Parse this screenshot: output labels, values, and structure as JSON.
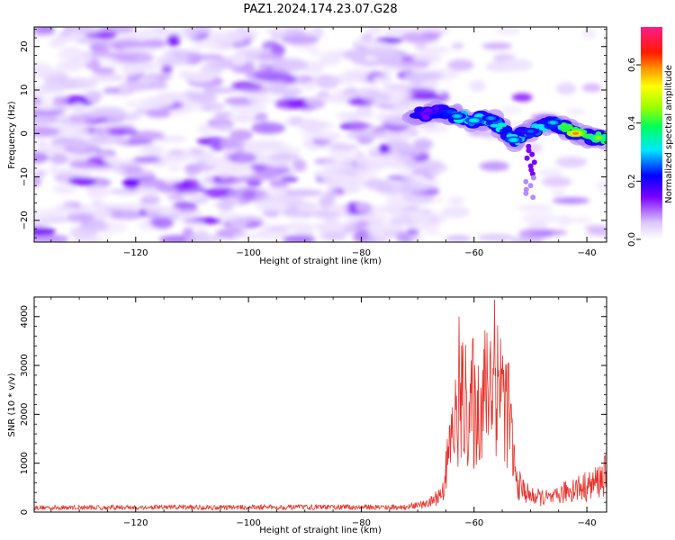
{
  "title": "PAZ1.2024.174.23.07.G28",
  "chart_data": [
    {
      "type": "heatmap",
      "xlabel": "Height of straight line (km)",
      "ylabel": "Frequency (Hz)",
      "xlim": [
        -138,
        -36.5
      ],
      "ylim": [
        -25,
        24.5
      ],
      "xticks": [
        -120,
        -100,
        -80,
        -60,
        -40
      ],
      "yticks": [
        -20,
        -10,
        0,
        10,
        20
      ],
      "colorbar": {
        "label": "Normalized spectral amplitude",
        "range": [
          0,
          0.73
        ],
        "ticks": [
          0.0,
          0.2,
          0.4,
          0.6
        ]
      },
      "signal_track": [
        {
          "x": -70,
          "y": 4.5,
          "v": 0.14
        },
        {
          "x": -66,
          "y": 5.0,
          "v": 0.2
        },
        {
          "x": -63,
          "y": 4.0,
          "v": 0.3
        },
        {
          "x": -60,
          "y": 3.0,
          "v": 0.33
        },
        {
          "x": -57,
          "y": 3.5,
          "v": 0.28
        },
        {
          "x": -53,
          "y": -1.5,
          "v": 0.32
        },
        {
          "x": -50,
          "y": 0.5,
          "v": 0.26
        },
        {
          "x": -46,
          "y": 2.5,
          "v": 0.3
        },
        {
          "x": -42,
          "y": 0.0,
          "v": 0.6
        },
        {
          "x": -38,
          "y": -1.0,
          "v": 0.46
        }
      ]
    },
    {
      "type": "line",
      "xlabel": "Height of straight line (km)",
      "ylabel": "SNR (10 * v/v)",
      "xlim": [
        -138,
        -36.5
      ],
      "ylim": [
        0,
        4400
      ],
      "xticks": [
        -120,
        -100,
        -80,
        -60,
        -40
      ],
      "yticks": [
        0,
        1000,
        2000,
        3000,
        4000
      ],
      "color": "#e8312a",
      "envelope": [
        {
          "x": -138,
          "v": 110
        },
        {
          "x": -72,
          "v": 120
        },
        {
          "x": -68,
          "v": 200
        },
        {
          "x": -65.5,
          "v": 500
        },
        {
          "x": -64,
          "v": 1800
        },
        {
          "x": -62,
          "v": 2700
        },
        {
          "x": -60,
          "v": 2300
        },
        {
          "x": -58,
          "v": 2900
        },
        {
          "x": -56,
          "v": 3200
        },
        {
          "x": -54,
          "v": 2500
        },
        {
          "x": -52.5,
          "v": 700
        },
        {
          "x": -50,
          "v": 380
        },
        {
          "x": -46,
          "v": 320
        },
        {
          "x": -43,
          "v": 550
        },
        {
          "x": -39,
          "v": 650
        },
        {
          "x": -36.5,
          "v": 900
        }
      ],
      "peaks": [
        {
          "x": -62.7,
          "v": 4000
        },
        {
          "x": -60.2,
          "v": 3550
        },
        {
          "x": -57.1,
          "v": 3500
        },
        {
          "x": -56.4,
          "v": 4350
        },
        {
          "x": -55.3,
          "v": 3550
        },
        {
          "x": -53.9,
          "v": 3050
        },
        {
          "x": -65.0,
          "v": 1250
        }
      ]
    }
  ]
}
